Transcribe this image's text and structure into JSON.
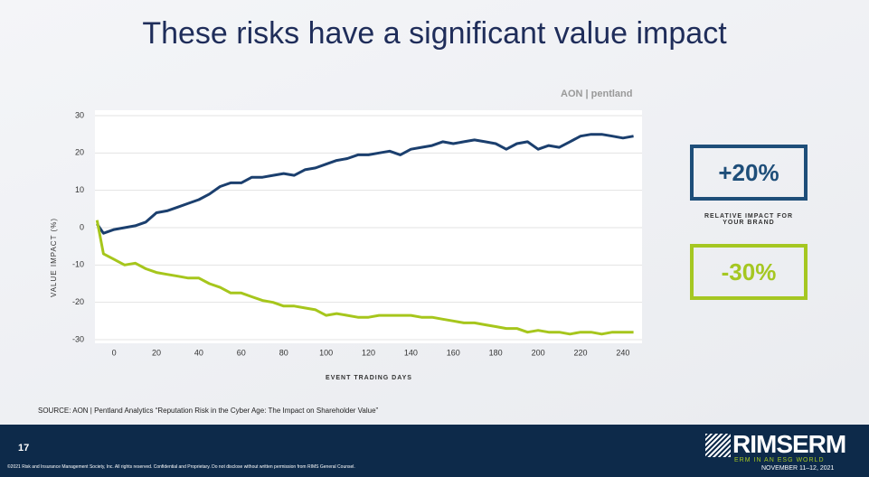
{
  "slide": {
    "title": "These risks have a significant value impact",
    "logo": "AON | pentland",
    "callouts": [
      {
        "text": "+20%"
      },
      {
        "text": "-30%"
      }
    ],
    "callout_caption": "RELATIVE IMPACT FOR YOUR BRAND",
    "source": "SOURCE: AON | Pentland Analytics “Reputation Risk in the Cyber Age: The Impact on Shareholder Value”",
    "page_number": "17",
    "copyright": "©2021 Risk and Insurance Management Society, Inc. All rights reserved. Confidential and Proprietary. Do not disclose without written permission from RIMS General Counsel.",
    "brand": "RIMSERM",
    "brand_tagline": "ERM IN AN ESG WORLD",
    "brand_date": "NOVEMBER 11–12, 2021"
  },
  "chart_data": {
    "type": "line",
    "x_label": "EVENT TRADING DAYS",
    "y_label": "VALUE IMPACT (%)",
    "x": [
      -8,
      -5,
      0,
      5,
      10,
      15,
      20,
      25,
      30,
      35,
      40,
      45,
      50,
      55,
      60,
      65,
      70,
      75,
      80,
      85,
      90,
      95,
      100,
      105,
      110,
      115,
      120,
      125,
      130,
      135,
      140,
      145,
      150,
      155,
      160,
      165,
      170,
      175,
      180,
      185,
      190,
      195,
      200,
      205,
      210,
      215,
      220,
      225,
      230,
      235,
      240,
      245
    ],
    "series": [
      {
        "color": "#1b3f6e",
        "values": [
          1,
          -1.5,
          -0.5,
          0,
          0.5,
          1.5,
          4,
          4.5,
          5.5,
          6.5,
          7.5,
          9,
          11,
          12,
          12,
          13.5,
          13.5,
          14,
          14.5,
          14,
          15.5,
          16,
          17,
          18,
          18.5,
          19.5,
          19.5,
          20,
          20.5,
          19.5,
          21,
          21.5,
          22,
          23,
          22.5,
          23,
          23.5,
          23,
          22.5,
          21,
          22.5,
          23,
          21,
          22,
          21.5,
          23,
          24.5,
          25,
          25,
          24.5,
          24,
          24.5
        ]
      },
      {
        "color": "#a6c61c",
        "values": [
          2,
          -7,
          -8.5,
          -10,
          -9.5,
          -11,
          -12,
          -12.5,
          -13,
          -13.5,
          -13.5,
          -15,
          -16,
          -17.5,
          -17.5,
          -18.5,
          -19.5,
          -20,
          -21,
          -21,
          -21.5,
          -22,
          -23.5,
          -23,
          -23.5,
          -24,
          -24,
          -23.5,
          -23.5,
          -23.5,
          -23.5,
          -24,
          -24,
          -24.5,
          -25,
          -25.5,
          -25.5,
          -26,
          -26.5,
          -27,
          -27,
          -28,
          -27.5,
          -28,
          -28,
          -28.5,
          -28,
          -28,
          -28.5,
          -28,
          -28,
          -28
        ]
      }
    ],
    "xlim": [
      -9,
      249
    ],
    "ylim": [
      -30,
      30
    ],
    "xticks": [
      0,
      20,
      40,
      60,
      80,
      100,
      120,
      140,
      160,
      180,
      200,
      220,
      240
    ],
    "yticks": [
      -30,
      -20,
      -10,
      0,
      10,
      20,
      30
    ],
    "grid": true
  }
}
